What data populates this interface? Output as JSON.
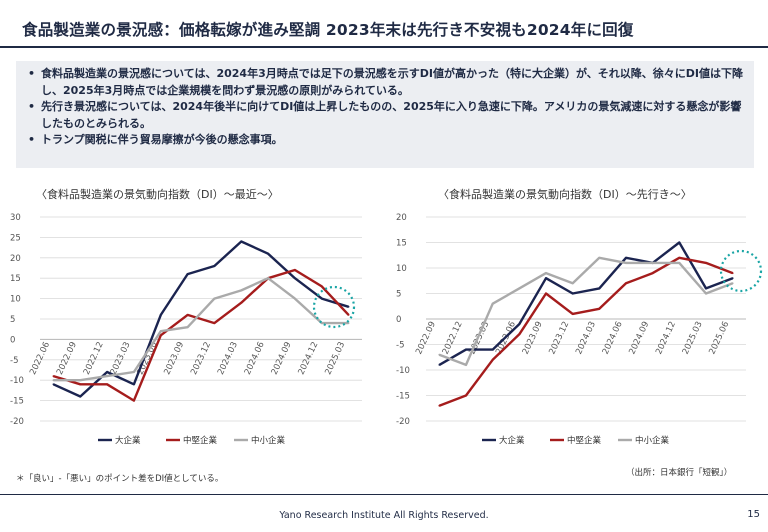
{
  "title": "食品製造業の景況感：価格転嫁が進み堅調 2023年末は先行き不安視も2024年に回復",
  "bullets": [
    "食料品製造業の景況感については、2024年3月時点では足下の景況感を示すDI値が高かった（特に大企業）が、それ以降、徐々にDI値は下降し、2025年3月時点では企業規模を問わず景況感の原則がみられている。",
    "先行き景況感については、2024年後半に向けてDI値は上昇したものの、2025年に入り急速に下降。アメリカの景気減速に対する懸念が影響したものとみられる。",
    "トランプ関税に伴う貿易摩擦が今後の懸念事項。"
  ],
  "footnote": "＊「良い」-「悪い」のポイント差をDI値としている。",
  "source": "（出所：日本銀行「短観」）",
  "footer": "Yano Research Institute All Rights Reserved.",
  "page_number": "15",
  "colors": {
    "large": "#1b2450",
    "medium": "#a51c1c",
    "small": "#aaaaaa",
    "highlight_circle": "#1aa5a5"
  },
  "chart_data": [
    {
      "type": "line",
      "title": "〈食料品製造業の景気動向指数（DI）～最近～〉",
      "categories": [
        "2022.06",
        "2022.09",
        "2022.12",
        "2023.03",
        "2023.06",
        "2023.09",
        "2023.12",
        "2024.03",
        "2024.06",
        "2024.09",
        "2024.12",
        "2025.03"
      ],
      "x_points": [
        "2022.06",
        "",
        "2022.09",
        "",
        "2022.12",
        "",
        "2023.03",
        "",
        "2023.06",
        "",
        "2023.09",
        "",
        "2023.12",
        "",
        "2024.03",
        "",
        "2024.06",
        "",
        "2024.09",
        "",
        "2024.12",
        "",
        "2025.03",
        ""
      ],
      "ylim": [
        -20,
        30
      ],
      "yticks": [
        -20,
        -15,
        -10,
        -5,
        0,
        5,
        10,
        15,
        20,
        25,
        30
      ],
      "series": [
        {
          "name": "大企業",
          "values": [
            -11,
            -14,
            -8,
            -11,
            6,
            16,
            18,
            24,
            21,
            15,
            10,
            8
          ]
        },
        {
          "name": "中堅企業",
          "values": [
            -9,
            -11,
            -11,
            -15,
            1,
            6,
            4,
            9,
            15,
            17,
            13,
            6
          ]
        },
        {
          "name": "中小企業",
          "values": [
            -10,
            -10,
            -9,
            -8,
            2,
            3,
            10,
            12,
            15,
            10,
            4,
            4
          ]
        }
      ],
      "legend_position": "bottom"
    },
    {
      "type": "line",
      "title": "〈食料品製造業の景気動向指数（DI）～先行き～〉",
      "categories": [
        "2022.09",
        "2022.12",
        "2023.03",
        "2023.06",
        "2023.09",
        "2023.12",
        "2024.03",
        "2024.06",
        "2024.09",
        "2024.12",
        "2025.03",
        "2025.06"
      ],
      "x_points": [
        "2022.09",
        "",
        "2022.12",
        "",
        "2023.03",
        "",
        "2023.06",
        "",
        "2023.09",
        "",
        "2023.12",
        "",
        "2024.03",
        "",
        "2024.06",
        "",
        "2024.09",
        "",
        "2024.12",
        "",
        "2025.03",
        "",
        "2025.06",
        ""
      ],
      "ylim": [
        -20,
        20
      ],
      "yticks": [
        -20,
        -15,
        -10,
        -5,
        0,
        5,
        10,
        15,
        20
      ],
      "series": [
        {
          "name": "大企業",
          "values": [
            -9,
            -6,
            -6,
            -1,
            8,
            5,
            6,
            12,
            11,
            15,
            6,
            8
          ]
        },
        {
          "name": "中堅企業",
          "values": [
            -17,
            -15,
            -8,
            -3,
            5,
            1,
            2,
            7,
            9,
            12,
            11,
            9
          ]
        },
        {
          "name": "中小企業",
          "values": [
            -7,
            -9,
            3,
            6,
            9,
            7,
            12,
            11,
            11,
            11,
            5,
            7
          ]
        }
      ],
      "legend_position": "bottom"
    }
  ]
}
